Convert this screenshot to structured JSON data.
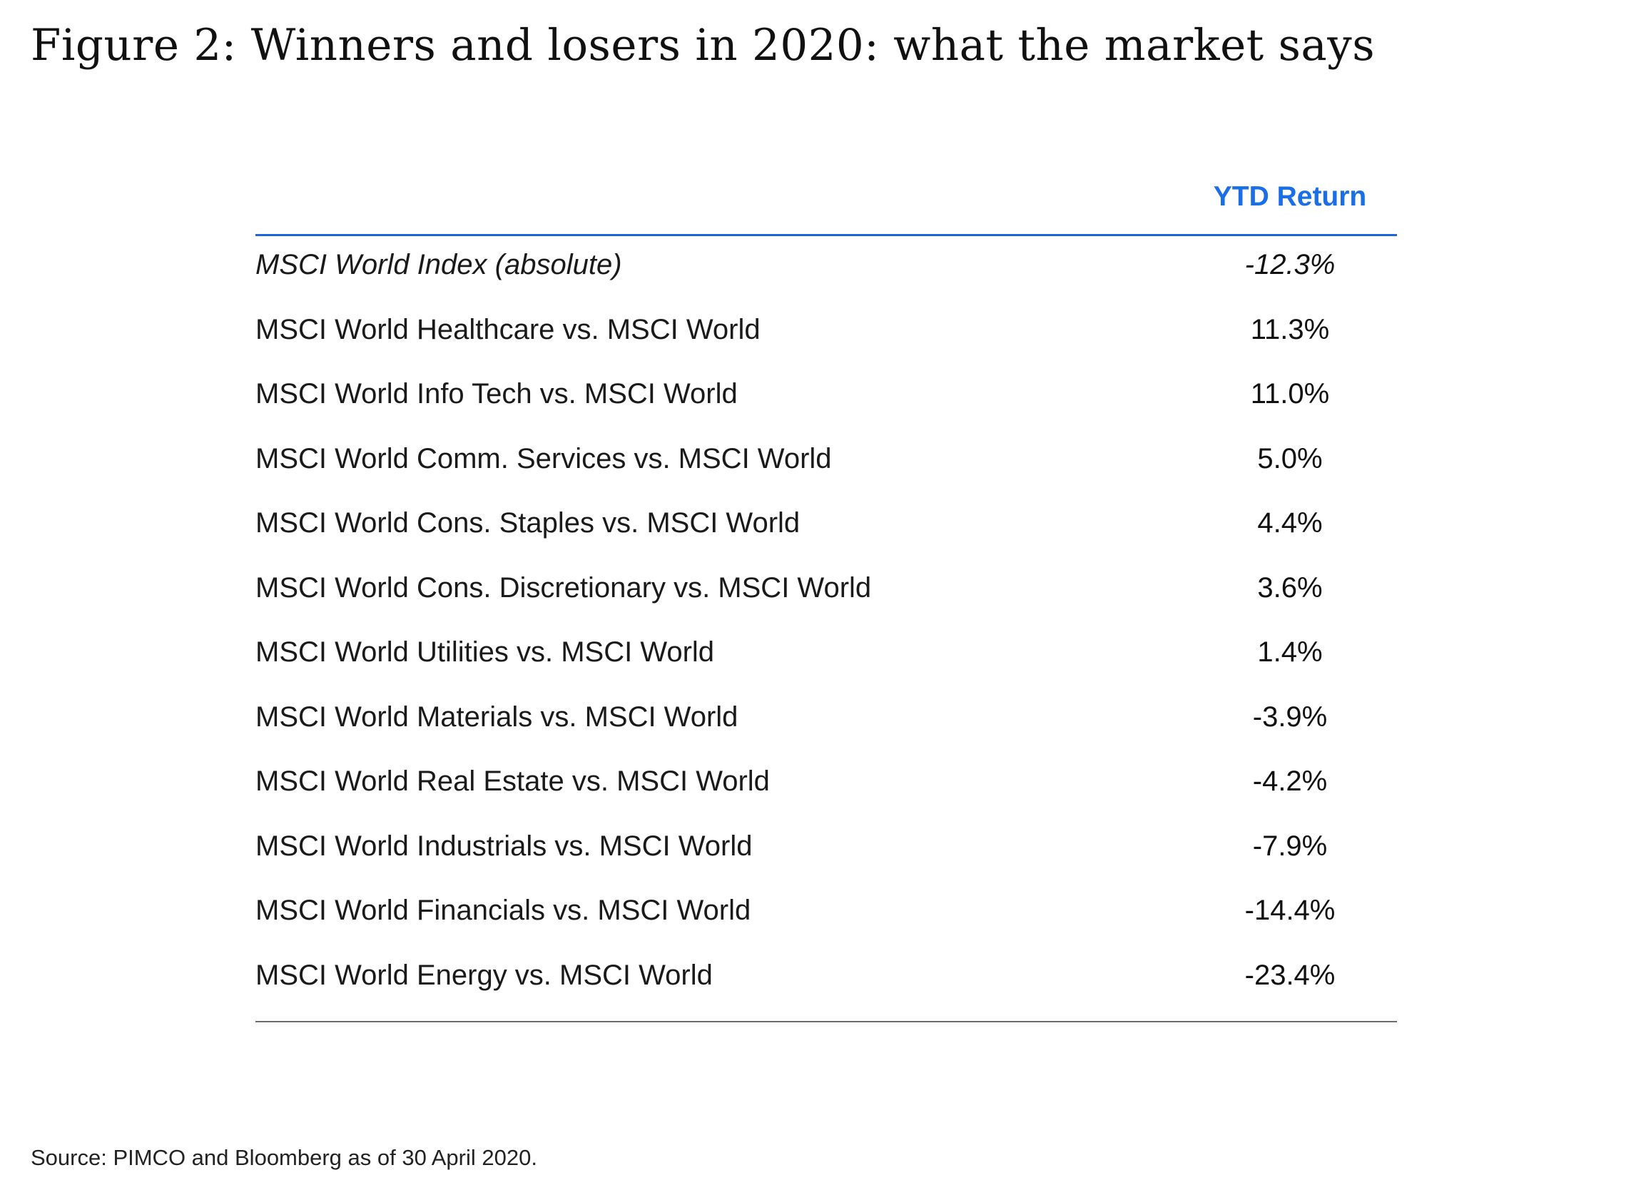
{
  "title": "Figure 2: Winners and losers in 2020: what the market says",
  "table": {
    "column_header": "YTD Return",
    "rows": [
      {
        "label": "MSCI World Index (absolute)",
        "value": "-12.3%"
      },
      {
        "label": "MSCI World Healthcare vs. MSCI World",
        "value": "11.3%"
      },
      {
        "label": "MSCI World Info Tech vs. MSCI World",
        "value": "11.0%"
      },
      {
        "label": "MSCI World Comm. Services vs. MSCI World",
        "value": "5.0%"
      },
      {
        "label": "MSCI World Cons. Staples vs. MSCI World",
        "value": "4.4%"
      },
      {
        "label": "MSCI World Cons. Discretionary vs. MSCI World",
        "value": "3.6%"
      },
      {
        "label": "MSCI World Utilities vs. MSCI World",
        "value": "1.4%"
      },
      {
        "label": "MSCI World Materials vs. MSCI World",
        "value": "-3.9%"
      },
      {
        "label": "MSCI World Real Estate vs. MSCI World",
        "value": "-4.2%"
      },
      {
        "label": "MSCI World Industrials vs. MSCI World",
        "value": "-7.9%"
      },
      {
        "label": "MSCI World Financials vs. MSCI World",
        "value": "-14.4%"
      },
      {
        "label": "MSCI World Energy vs. MSCI World",
        "value": "-23.4%"
      }
    ]
  },
  "source": "Source: PIMCO and Bloomberg as of 30 April 2020.",
  "colors": {
    "header_accent": "#1a6ee6",
    "header_rule": "#1f63d8"
  }
}
